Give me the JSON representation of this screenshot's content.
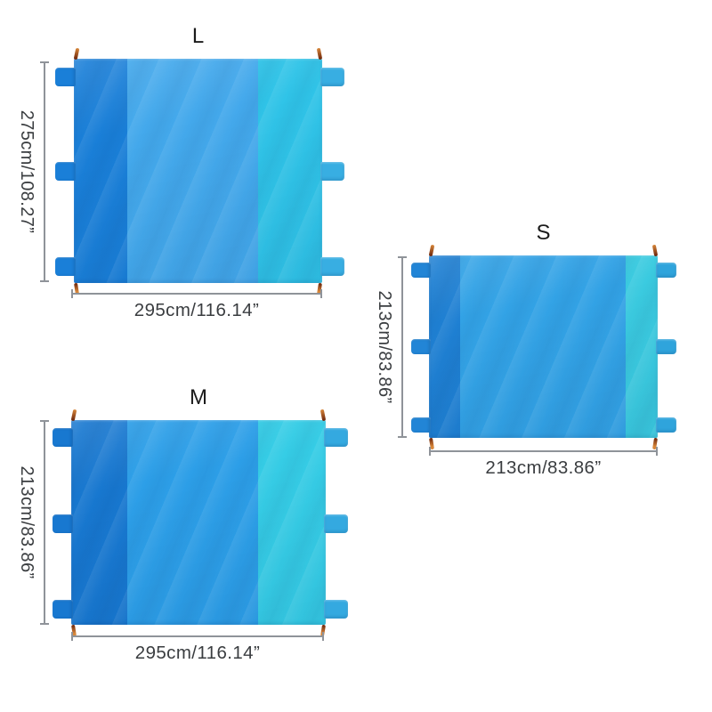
{
  "palette": {
    "background": "#ffffff",
    "dimension_line": "#8f9399",
    "dimension_text": "#3a3d40",
    "title_text": "#1b1b1b",
    "loop_light": "#d8873a",
    "loop_dark": "#69230a"
  },
  "blankets": [
    {
      "size": "L",
      "height_label": "275cm/108.27”",
      "width_label": "295cm/116.14”",
      "colors": {
        "dark": "#1a7fd8",
        "mid": "#44a9ec",
        "cyan": "#30c4e8",
        "tab_left": "#1a7fd8",
        "tab_right": "#38aee2"
      }
    },
    {
      "size": "M",
      "height_label": "213cm/83.86”",
      "width_label": "295cm/116.14”",
      "colors": {
        "dark": "#1878d0",
        "mid": "#2d9fe8",
        "cyan": "#36cde6",
        "tab_left": "#1878d0",
        "tab_right": "#34a9e0"
      }
    },
    {
      "size": "S",
      "height_label": "213cm/83.86”",
      "width_label": "213cm/83.86”",
      "colors": {
        "dark": "#1f80d3",
        "mid": "#33a3e6",
        "cyan": "#3bcbe0",
        "tab_left": "#2285d6",
        "tab_right": "#2fa4dc"
      }
    }
  ]
}
